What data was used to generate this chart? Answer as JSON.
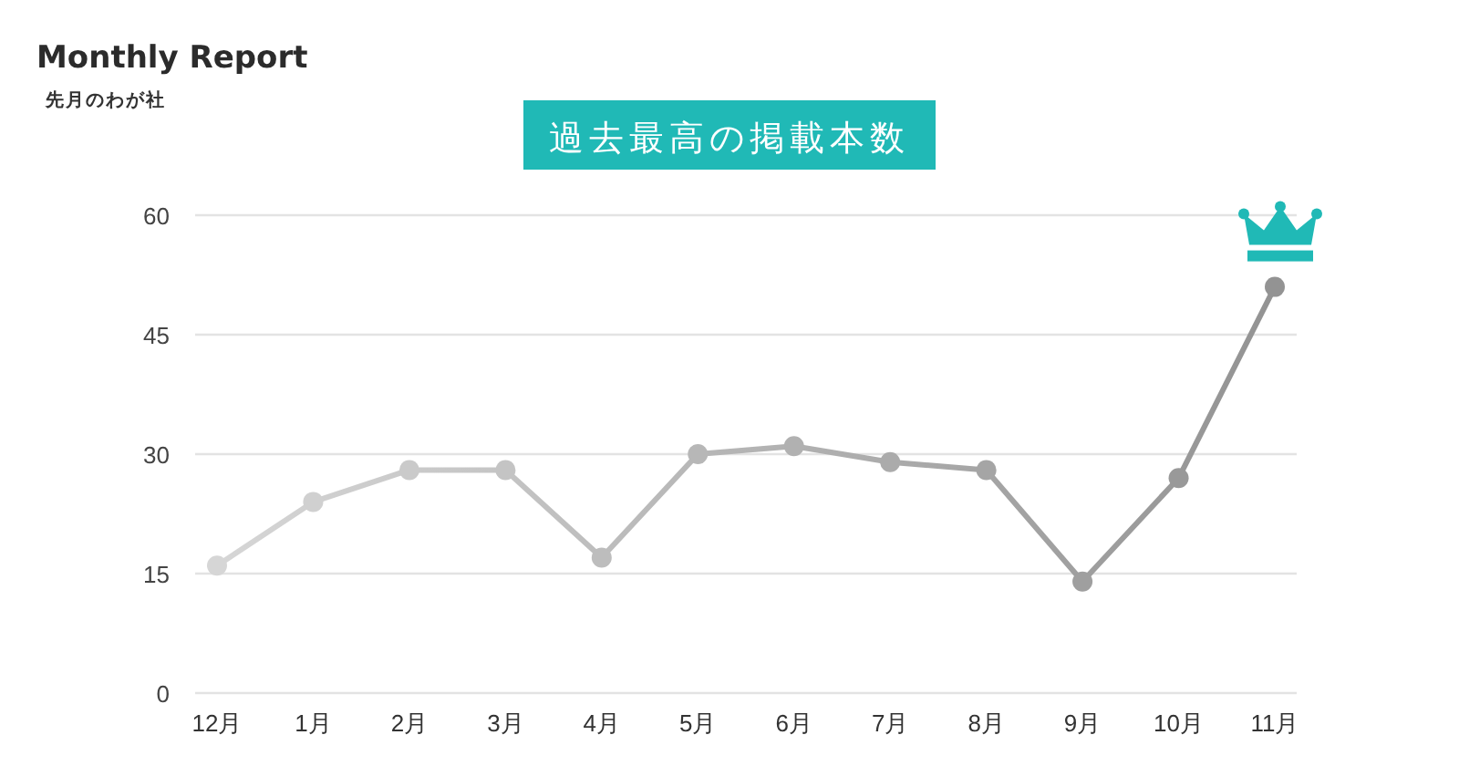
{
  "chart_data": {
    "type": "line",
    "title": "Monthly Report",
    "subtitle": "先月のわが社",
    "annotations": [
      "過去最高の掲載本数"
    ],
    "categories": [
      "12月",
      "1月",
      "2月",
      "3月",
      "4月",
      "5月",
      "6月",
      "7月",
      "8月",
      "9月",
      "10月",
      "11月"
    ],
    "series": [
      {
        "values": [
          16,
          24,
          28,
          28,
          17,
          30,
          31,
          29,
          28,
          14,
          27,
          51
        ],
        "colors": [
          "#d6d6d6",
          "#d0d0d0",
          "#cacaca",
          "#c4c4c4",
          "#bdbdbd",
          "#b7b7b7",
          "#b1b1b1",
          "#ababab",
          "#a5a5a5",
          "#9f9f9f",
          "#999999",
          "#939393"
        ]
      }
    ],
    "ylim": [
      0,
      60
    ],
    "yticks": [
      0,
      15,
      30,
      45,
      60
    ],
    "grid": "y",
    "marker": "circle"
  }
}
